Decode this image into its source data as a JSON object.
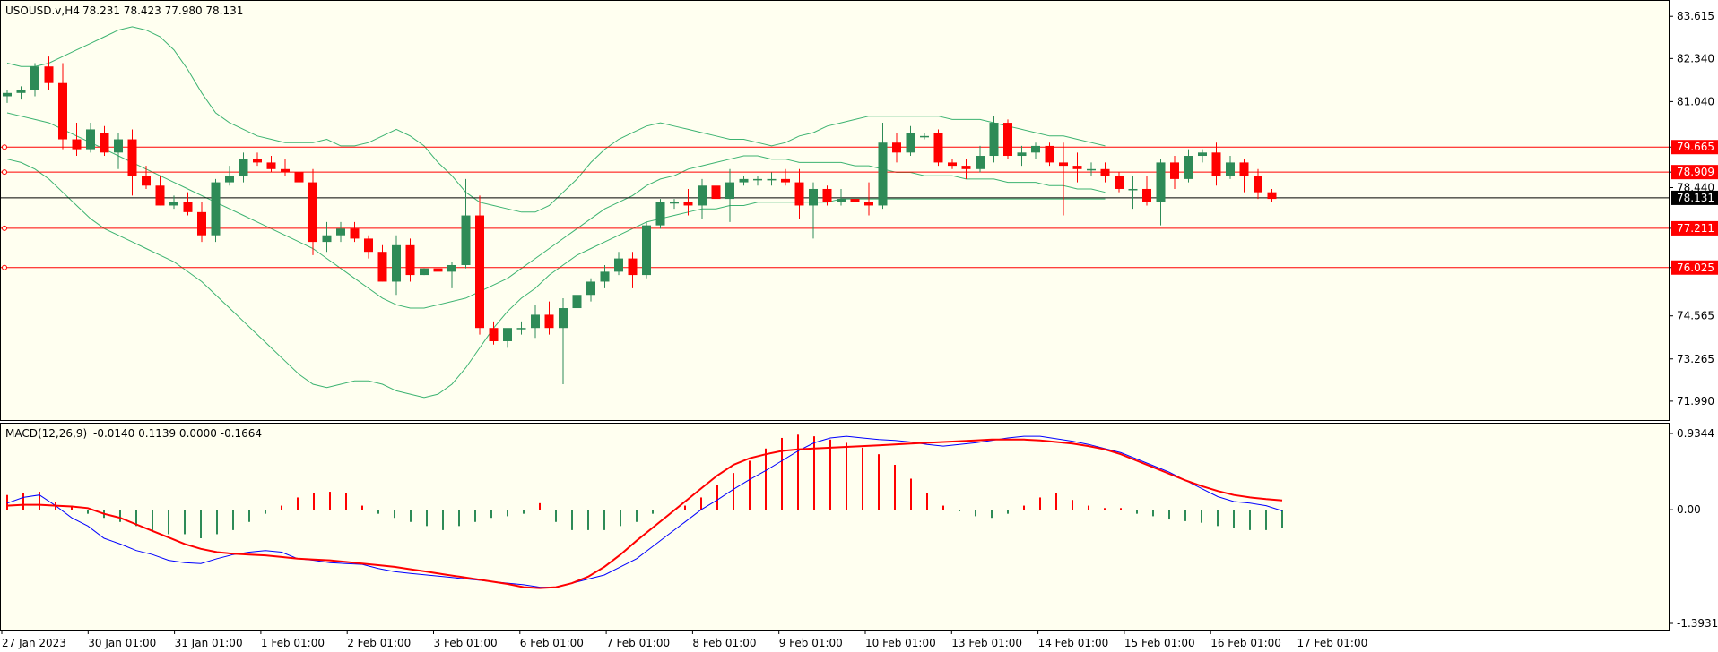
{
  "header": {
    "symbol": "USOUSD.v,H4",
    "ohlc": "78.231 78.423 77.980 78.131",
    "macd_title": "MACD(12,26,9)",
    "macd_values": "-0.0140 0.1139 0.0000 -0.1664"
  },
  "colors": {
    "background": "#fffff0",
    "bull": "#2e8b57",
    "bear": "#ff0000",
    "band": "#3cb371",
    "level": "#ff0000",
    "macd_line": "#0000ff",
    "signal_line": "#ff0000"
  },
  "chart_data": [
    {
      "type": "candlestick",
      "title": "USOUSD.v,H4",
      "ylim": [
        71.5,
        84.0
      ],
      "yticks": [
        "83.615",
        "82.340",
        "81.040",
        "79.665",
        "78.909",
        "78.440",
        "77.211",
        "76.025",
        "74.565",
        "73.265",
        "71.990"
      ],
      "current_price": "78.131",
      "levels": [
        79.665,
        78.909,
        77.211,
        76.025
      ],
      "xlabels": [
        "27 Jan 2023",
        "30 Jan 01:00",
        "31 Jan 01:00",
        "1 Feb 01:00",
        "2 Feb 01:00",
        "3 Feb 01:00",
        "6 Feb 01:00",
        "7 Feb 01:00",
        "8 Feb 01:00",
        "9 Feb 01:00",
        "10 Feb 01:00",
        "13 Feb 01:00",
        "14 Feb 01:00",
        "15 Feb 01:00",
        "16 Feb 01:00",
        "17 Feb 01:00"
      ],
      "candles": [
        [
          81.2,
          81.4,
          81.0,
          81.3
        ],
        [
          81.3,
          81.5,
          81.1,
          81.4
        ],
        [
          81.4,
          82.2,
          81.2,
          82.1
        ],
        [
          82.1,
          82.4,
          81.4,
          81.6
        ],
        [
          81.6,
          82.2,
          79.6,
          79.9
        ],
        [
          79.9,
          80.4,
          79.4,
          79.6
        ],
        [
          79.6,
          80.4,
          79.5,
          80.2
        ],
        [
          80.1,
          80.3,
          79.4,
          79.5
        ],
        [
          79.5,
          80.1,
          79.0,
          79.9
        ],
        [
          79.9,
          80.2,
          78.2,
          78.8
        ],
        [
          78.8,
          79.1,
          78.4,
          78.5
        ],
        [
          78.5,
          78.8,
          77.9,
          77.9
        ],
        [
          77.9,
          78.2,
          77.8,
          78.0
        ],
        [
          78.0,
          78.3,
          77.6,
          77.7
        ],
        [
          77.7,
          78.0,
          76.8,
          77.0
        ],
        [
          77.0,
          78.7,
          76.8,
          78.6
        ],
        [
          78.6,
          79.1,
          78.5,
          78.8
        ],
        [
          78.8,
          79.5,
          78.6,
          79.3
        ],
        [
          79.3,
          79.5,
          79.1,
          79.2
        ],
        [
          79.2,
          79.4,
          78.9,
          79.0
        ],
        [
          79.0,
          79.3,
          78.8,
          78.9
        ],
        [
          78.9,
          79.8,
          78.7,
          78.6
        ],
        [
          78.6,
          79.0,
          76.4,
          76.8
        ],
        [
          76.8,
          77.4,
          76.5,
          77.0
        ],
        [
          77.0,
          77.4,
          76.8,
          77.2
        ],
        [
          77.2,
          77.4,
          76.8,
          76.9
        ],
        [
          76.9,
          77.0,
          76.3,
          76.5
        ],
        [
          76.5,
          76.7,
          75.6,
          75.6
        ],
        [
          75.6,
          77.0,
          75.2,
          76.7
        ],
        [
          76.7,
          76.9,
          75.6,
          75.8
        ],
        [
          75.8,
          76.0,
          75.8,
          76.0
        ],
        [
          76.0,
          76.1,
          75.9,
          75.9
        ],
        [
          75.9,
          76.2,
          75.4,
          76.1
        ],
        [
          76.1,
          78.7,
          76.0,
          77.6
        ],
        [
          77.6,
          78.2,
          74.0,
          74.2
        ],
        [
          74.2,
          74.4,
          73.7,
          73.8
        ],
        [
          73.8,
          74.1,
          73.6,
          74.2
        ],
        [
          74.2,
          74.4,
          74.0,
          74.2
        ],
        [
          74.2,
          74.9,
          73.9,
          74.6
        ],
        [
          74.6,
          75.0,
          74.0,
          74.2
        ],
        [
          74.2,
          75.1,
          72.5,
          74.8
        ],
        [
          74.8,
          75.2,
          74.5,
          75.2
        ],
        [
          75.2,
          75.7,
          75.0,
          75.6
        ],
        [
          75.6,
          76.1,
          75.4,
          75.9
        ],
        [
          75.9,
          76.5,
          75.8,
          76.3
        ],
        [
          76.3,
          76.5,
          75.4,
          75.8
        ],
        [
          75.8,
          77.4,
          75.7,
          77.3
        ],
        [
          77.3,
          78.1,
          77.2,
          78.0
        ],
        [
          78.0,
          78.1,
          77.8,
          78.0
        ],
        [
          78.0,
          78.4,
          77.6,
          77.9
        ],
        [
          77.9,
          78.7,
          77.5,
          78.5
        ],
        [
          78.5,
          78.7,
          78.0,
          78.1
        ],
        [
          78.1,
          79.0,
          77.4,
          78.6
        ],
        [
          78.6,
          78.8,
          78.5,
          78.7
        ],
        [
          78.7,
          78.8,
          78.5,
          78.7
        ],
        [
          78.7,
          78.9,
          78.5,
          78.7
        ],
        [
          78.7,
          79.0,
          78.5,
          78.6
        ],
        [
          78.6,
          79.0,
          77.5,
          77.9
        ],
        [
          77.9,
          78.6,
          76.9,
          78.4
        ],
        [
          78.4,
          78.5,
          77.9,
          78.0
        ],
        [
          78.0,
          78.4,
          77.9,
          78.1
        ],
        [
          78.1,
          78.2,
          77.9,
          78.0
        ],
        [
          78.0,
          78.6,
          77.6,
          77.9
        ],
        [
          77.9,
          80.4,
          77.8,
          79.8
        ],
        [
          79.8,
          80.1,
          79.2,
          79.5
        ],
        [
          79.5,
          80.3,
          79.4,
          80.1
        ],
        [
          80.0,
          80.1,
          79.9,
          80.0
        ],
        [
          80.1,
          80.2,
          79.1,
          79.2
        ],
        [
          79.2,
          79.3,
          79.0,
          79.1
        ],
        [
          79.1,
          79.3,
          78.7,
          79.0
        ],
        [
          79.0,
          79.7,
          78.9,
          79.4
        ],
        [
          79.4,
          80.6,
          79.2,
          80.4
        ],
        [
          80.4,
          80.5,
          79.3,
          79.4
        ],
        [
          79.4,
          79.7,
          79.1,
          79.5
        ],
        [
          79.5,
          79.8,
          79.3,
          79.7
        ],
        [
          79.7,
          79.8,
          79.1,
          79.2
        ],
        [
          79.2,
          79.8,
          77.6,
          79.1
        ],
        [
          79.1,
          79.5,
          78.6,
          79.0
        ],
        [
          79.0,
          79.2,
          78.8,
          79.0
        ],
        [
          79.0,
          79.2,
          78.6,
          78.8
        ],
        [
          78.8,
          78.9,
          78.3,
          78.4
        ],
        [
          78.4,
          78.8,
          77.8,
          78.4
        ],
        [
          78.4,
          78.8,
          77.9,
          78.0
        ],
        [
          78.0,
          79.3,
          77.3,
          79.2
        ],
        [
          79.2,
          79.4,
          78.4,
          78.7
        ],
        [
          78.7,
          79.6,
          78.6,
          79.4
        ],
        [
          79.4,
          79.6,
          79.2,
          79.5
        ],
        [
          79.5,
          79.8,
          78.5,
          78.8
        ],
        [
          78.8,
          79.4,
          78.7,
          79.2
        ],
        [
          79.2,
          79.3,
          78.3,
          78.8
        ],
        [
          78.8,
          79.0,
          78.1,
          78.3
        ],
        [
          78.3,
          78.4,
          78.0,
          78.1
        ]
      ],
      "bb_upper": [
        82.2,
        82.1,
        82.1,
        82.2,
        82.4,
        82.6,
        82.8,
        83.0,
        83.2,
        83.3,
        83.2,
        83.0,
        82.6,
        82.0,
        81.3,
        80.7,
        80.4,
        80.2,
        80.0,
        79.9,
        79.8,
        79.8,
        79.8,
        79.9,
        79.7,
        79.7,
        79.8,
        80.0,
        80.2,
        80.0,
        79.7,
        79.2,
        78.8,
        78.3,
        78.0,
        77.9,
        77.8,
        77.7,
        77.7,
        77.9,
        78.3,
        78.7,
        79.2,
        79.6,
        79.9,
        80.1,
        80.3,
        80.4,
        80.3,
        80.2,
        80.1,
        80.0,
        79.9,
        79.9,
        79.8,
        79.7,
        79.8,
        80.0,
        80.1,
        80.3,
        80.4,
        80.5,
        80.6,
        80.6,
        80.6,
        80.6,
        80.6,
        80.6,
        80.5,
        80.5,
        80.5,
        80.4,
        80.3,
        80.2,
        80.1,
        80.0,
        80.0,
        79.9,
        79.8,
        79.7
      ],
      "bb_middle": [
        80.7,
        80.6,
        80.5,
        80.4,
        80.2,
        80.0,
        79.8,
        79.6,
        79.4,
        79.2,
        79.0,
        78.8,
        78.6,
        78.4,
        78.2,
        78.0,
        77.8,
        77.6,
        77.4,
        77.2,
        77.0,
        76.8,
        76.6,
        76.3,
        76.0,
        75.7,
        75.4,
        75.1,
        74.9,
        74.8,
        74.8,
        74.9,
        75.0,
        75.1,
        75.3,
        75.5,
        75.7,
        76.0,
        76.3,
        76.6,
        76.9,
        77.2,
        77.5,
        77.8,
        78.0,
        78.2,
        78.5,
        78.7,
        78.8,
        79.0,
        79.1,
        79.2,
        79.3,
        79.4,
        79.4,
        79.3,
        79.3,
        79.2,
        79.2,
        79.2,
        79.2,
        79.1,
        79.1,
        79.0,
        78.9,
        78.9,
        78.8,
        78.8,
        78.8,
        78.7,
        78.7,
        78.7,
        78.6,
        78.6,
        78.6,
        78.5,
        78.5,
        78.4,
        78.4,
        78.3
      ],
      "bb_lower": [
        79.3,
        79.2,
        79.0,
        78.7,
        78.3,
        77.9,
        77.5,
        77.2,
        77.0,
        76.8,
        76.6,
        76.4,
        76.2,
        75.9,
        75.6,
        75.2,
        74.8,
        74.4,
        74.0,
        73.6,
        73.2,
        72.8,
        72.5,
        72.4,
        72.5,
        72.6,
        72.6,
        72.5,
        72.3,
        72.2,
        72.1,
        72.2,
        72.5,
        73.0,
        73.6,
        74.2,
        74.7,
        75.1,
        75.4,
        75.8,
        76.1,
        76.4,
        76.6,
        76.8,
        77.0,
        77.2,
        77.4,
        77.5,
        77.6,
        77.7,
        77.8,
        77.8,
        77.9,
        77.9,
        78.0,
        78.0,
        78.0,
        78.0,
        78.0,
        78.0,
        78.1,
        78.1,
        78.1,
        78.1,
        78.1,
        78.1,
        78.1,
        78.1,
        78.1,
        78.1,
        78.1,
        78.1,
        78.1,
        78.1,
        78.1,
        78.1,
        78.1,
        78.1,
        78.1,
        78.1
      ]
    },
    {
      "type": "macd",
      "title": "MACD(12,26,9)",
      "ylim": [
        -1.3931,
        0.9344
      ],
      "yticks": [
        "0.9344",
        "0.00",
        "-1.3931"
      ],
      "histogram": [
        0.18,
        0.2,
        0.22,
        0.1,
        0.05,
        -0.05,
        -0.1,
        -0.15,
        -0.2,
        -0.25,
        -0.3,
        -0.3,
        -0.35,
        -0.3,
        -0.25,
        -0.15,
        -0.05,
        0.05,
        0.15,
        0.2,
        0.22,
        0.2,
        0.05,
        -0.05,
        -0.1,
        -0.15,
        -0.2,
        -0.25,
        -0.2,
        -0.15,
        -0.1,
        -0.08,
        -0.05,
        0.08,
        -0.15,
        -0.25,
        -0.25,
        -0.25,
        -0.2,
        -0.15,
        -0.05,
        0.0,
        0.05,
        0.15,
        0.3,
        0.45,
        0.6,
        0.75,
        0.88,
        0.92,
        0.9,
        0.86,
        0.82,
        0.76,
        0.68,
        0.55,
        0.38,
        0.2,
        0.05,
        -0.02,
        -0.08,
        -0.1,
        -0.05,
        0.05,
        0.15,
        0.2,
        0.12,
        0.05,
        0.02,
        0.02,
        -0.05,
        -0.08,
        -0.12,
        -0.14,
        -0.16,
        -0.2,
        -0.22,
        -0.25,
        -0.25,
        -0.22
      ],
      "macd": [
        0.08,
        0.15,
        0.18,
        0.05,
        -0.1,
        -0.2,
        -0.35,
        -0.42,
        -0.5,
        -0.55,
        -0.62,
        -0.65,
        -0.66,
        -0.6,
        -0.55,
        -0.52,
        -0.5,
        -0.52,
        -0.6,
        -0.62,
        -0.65,
        -0.66,
        -0.67,
        -0.72,
        -0.76,
        -0.78,
        -0.8,
        -0.82,
        -0.84,
        -0.86,
        -0.88,
        -0.9,
        -0.92,
        -0.95,
        -0.95,
        -0.9,
        -0.85,
        -0.8,
        -0.7,
        -0.6,
        -0.45,
        -0.3,
        -0.15,
        0.0,
        0.12,
        0.25,
        0.37,
        0.48,
        0.6,
        0.72,
        0.82,
        0.88,
        0.9,
        0.88,
        0.86,
        0.85,
        0.83,
        0.8,
        0.78,
        0.8,
        0.82,
        0.85,
        0.88,
        0.9,
        0.9,
        0.87,
        0.84,
        0.8,
        0.75,
        0.7,
        0.62,
        0.54,
        0.46,
        0.36,
        0.26,
        0.16,
        0.1,
        0.08,
        0.05,
        -0.014
      ],
      "signal": [
        0.05,
        0.06,
        0.06,
        0.05,
        0.04,
        0.02,
        -0.05,
        -0.1,
        -0.18,
        -0.26,
        -0.34,
        -0.42,
        -0.48,
        -0.52,
        -0.54,
        -0.55,
        -0.56,
        -0.58,
        -0.6,
        -0.61,
        -0.62,
        -0.64,
        -0.66,
        -0.68,
        -0.7,
        -0.73,
        -0.76,
        -0.79,
        -0.82,
        -0.85,
        -0.88,
        -0.91,
        -0.95,
        -0.96,
        -0.95,
        -0.9,
        -0.82,
        -0.7,
        -0.55,
        -0.38,
        -0.22,
        -0.06,
        0.1,
        0.26,
        0.42,
        0.55,
        0.63,
        0.68,
        0.72,
        0.74,
        0.75,
        0.76,
        0.77,
        0.78,
        0.79,
        0.8,
        0.81,
        0.82,
        0.83,
        0.84,
        0.85,
        0.86,
        0.86,
        0.86,
        0.85,
        0.83,
        0.81,
        0.78,
        0.74,
        0.68,
        0.6,
        0.52,
        0.44,
        0.36,
        0.29,
        0.23,
        0.18,
        0.15,
        0.13,
        0.114
      ]
    }
  ]
}
